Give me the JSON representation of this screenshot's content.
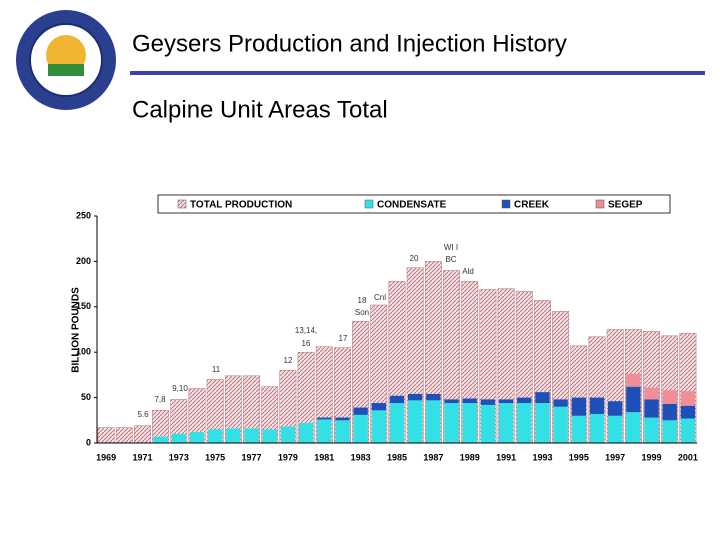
{
  "header": {
    "title": "Geysers Production and Injection History",
    "subtitle": "Calpine Unit Areas Total"
  },
  "chart_data": {
    "type": "bar",
    "stacked": true,
    "ylabel": "BILLION POUNDS",
    "categories": [
      "1969",
      null,
      "1971",
      null,
      "1973",
      null,
      "1975",
      null,
      "1977",
      null,
      "1979",
      null,
      "1981",
      null,
      "1983",
      null,
      "1985",
      null,
      "1987",
      null,
      "1989",
      null,
      "1991",
      null,
      "1993",
      null,
      "1995",
      null,
      "1997",
      null,
      "1999",
      null,
      "2001"
    ],
    "series": [
      {
        "name": "TOTAL PRODUCTION",
        "color": "#d9a3a8",
        "values": [
          17,
          17,
          19,
          36,
          48,
          60,
          70,
          74,
          74,
          62,
          80,
          100,
          106,
          105,
          134,
          152,
          178,
          193,
          200,
          190,
          178,
          169,
          170,
          167,
          157,
          145,
          107,
          117,
          125,
          125,
          123,
          118,
          121
        ]
      },
      {
        "name": "CONDENSATE",
        "color": "#33e0e6",
        "values": [
          0,
          0,
          0,
          7,
          10,
          12,
          15,
          16,
          16,
          15,
          18,
          22,
          26,
          25,
          31,
          36,
          44,
          47,
          47,
          44,
          44,
          42,
          44,
          44,
          44,
          40,
          30,
          32,
          30,
          34,
          28,
          25,
          27
        ]
      },
      {
        "name": "CREEK",
        "color": "#1f4fb8",
        "values": [
          0,
          0,
          0,
          0,
          0,
          0,
          0,
          0,
          0,
          0,
          0,
          0,
          2,
          3,
          8,
          8,
          8,
          7,
          7,
          4,
          5,
          6,
          4,
          6,
          12,
          8,
          20,
          18,
          16,
          28,
          20,
          18,
          14
        ]
      },
      {
        "name": "SEGEP",
        "color": "#f08d96",
        "values": [
          0,
          0,
          0,
          0,
          0,
          0,
          0,
          0,
          0,
          0,
          0,
          0,
          0,
          0,
          0,
          0,
          0,
          0,
          0,
          0,
          0,
          0,
          0,
          0,
          0,
          0,
          0,
          0,
          0,
          14,
          13,
          15,
          16
        ]
      }
    ],
    "annotations": [
      "5.6",
      "7,8",
      "9,10",
      "11",
      "12",
      "13,14,",
      "16",
      "17",
      "18",
      "Son",
      "Cnl",
      "20",
      "WI I",
      "BC",
      "Ald"
    ],
    "ylim": [
      0,
      250
    ],
    "yticks": [
      0,
      50,
      100,
      150,
      200,
      250
    ],
    "grid": false,
    "legend": "top"
  }
}
